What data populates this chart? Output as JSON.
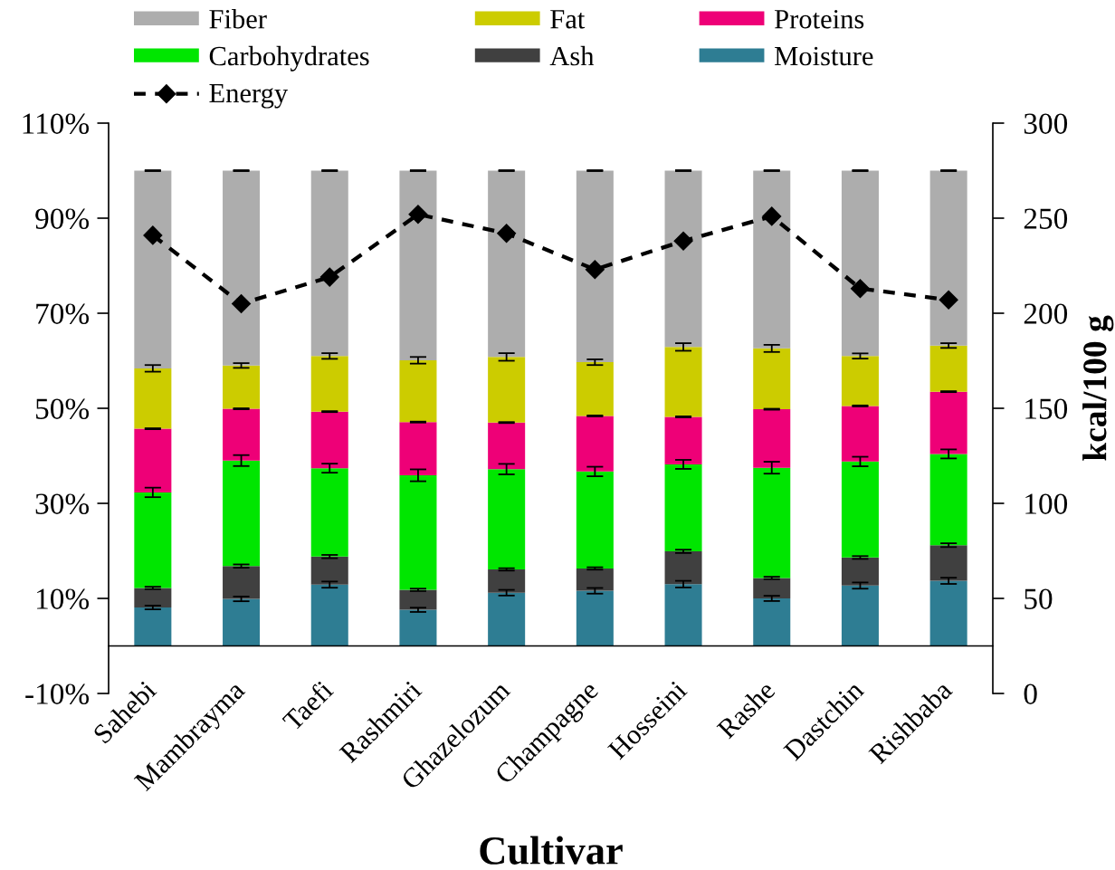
{
  "chart_data": {
    "type": "bar",
    "stacked": true,
    "legend": "top",
    "categories": [
      "Sahebi",
      "Mambrayma",
      "Taefi",
      "Rashmiri",
      "Ghazelozum",
      "Champagne",
      "Hosseini",
      "Rashe",
      "Dastchin",
      "Rishbaba"
    ],
    "xlabel": "Cultivar",
    "y2label": "kcal/100 g",
    "ylim": [
      -10,
      110
    ],
    "yticks": [
      {
        "value": -10,
        "label": "-10%"
      },
      {
        "value": 10,
        "label": "10%"
      },
      {
        "value": 30,
        "label": "30%"
      },
      {
        "value": 50,
        "label": "50%"
      },
      {
        "value": 70,
        "label": "70%"
      },
      {
        "value": 90,
        "label": "90%"
      },
      {
        "value": 110,
        "label": "110%"
      }
    ],
    "y2lim": [
      0,
      300
    ],
    "y2ticks": [
      0,
      50,
      100,
      150,
      200,
      250,
      300
    ],
    "series": [
      {
        "name": "Moisture",
        "color": "#2e7d93",
        "values": [
          8.1,
          9.9,
          12.9,
          7.6,
          11.2,
          11.6,
          13.0,
          10.0,
          12.7,
          13.7
        ],
        "errors": [
          0.4,
          0.5,
          0.65,
          0.45,
          0.6,
          0.6,
          0.7,
          0.55,
          0.65,
          0.65
        ]
      },
      {
        "name": "Ash",
        "color": "#404040",
        "values": [
          4.1,
          6.9,
          5.9,
          4.2,
          4.9,
          4.7,
          6.9,
          4.3,
          5.9,
          7.5
        ],
        "errors": [
          0.25,
          0.35,
          0.35,
          0.25,
          0.25,
          0.25,
          0.35,
          0.25,
          0.3,
          0.4
        ]
      },
      {
        "name": "Carbohydrates",
        "color": "#00e600",
        "values": [
          20.1,
          22.2,
          18.6,
          24.1,
          21.1,
          20.4,
          18.3,
          23.2,
          20.2,
          19.2
        ],
        "errors": [
          1.0,
          1.15,
          0.95,
          1.25,
          1.1,
          1.0,
          0.95,
          1.25,
          1.0,
          0.95
        ]
      },
      {
        "name": "Proteins",
        "color": "#ee0077",
        "values": [
          13.4,
          10.9,
          11.9,
          11.2,
          9.8,
          11.7,
          10.0,
          12.3,
          11.7,
          13.1
        ],
        "errors": [
          0.1,
          0.1,
          0.1,
          0.1,
          0.1,
          0.1,
          0.1,
          0.1,
          0.1,
          0.1
        ]
      },
      {
        "name": "Fat",
        "color": "#cccc00",
        "values": [
          12.7,
          9.1,
          11.7,
          13.0,
          13.8,
          11.3,
          14.7,
          12.8,
          10.5,
          9.7
        ],
        "errors": [
          0.7,
          0.5,
          0.6,
          0.7,
          0.8,
          0.6,
          0.8,
          0.75,
          0.55,
          0.5
        ]
      },
      {
        "name": "Fiber",
        "color": "#adadad",
        "values": [
          41.6,
          41.0,
          39.0,
          39.9,
          39.2,
          40.3,
          37.1,
          37.4,
          39.0,
          36.8
        ],
        "errors": [
          0.1,
          0.1,
          0.1,
          0.1,
          0.1,
          0.1,
          0.1,
          0.1,
          0.1,
          0.1
        ]
      },
      {
        "name": "Energy",
        "type": "line",
        "axis": "y2",
        "color": "#000000",
        "marker": "diamond",
        "line_style": "dashed",
        "values": [
          241,
          205,
          219,
          252,
          242,
          223,
          238,
          251,
          213,
          207
        ]
      }
    ]
  }
}
